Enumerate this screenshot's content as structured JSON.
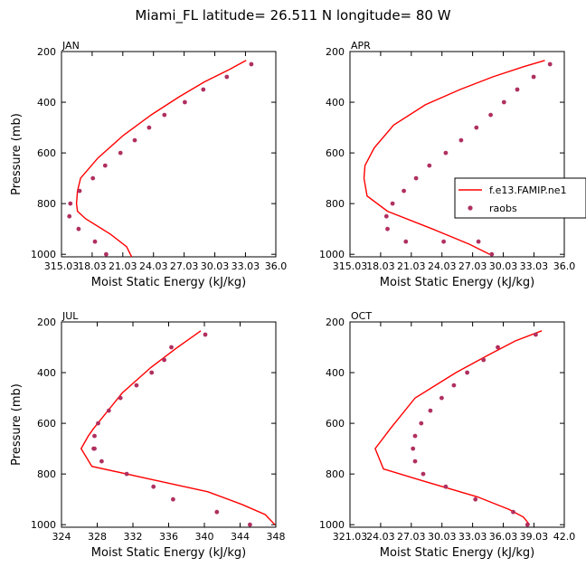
{
  "title": "Miami_FL  latitude= 26.511 N longitude= 80 W",
  "legend": {
    "items": [
      {
        "label": "f.e13.FAMIP.ne1",
        "kind": "line",
        "color": "#ff0000"
      },
      {
        "label": "raobs",
        "kind": "marker",
        "color": "#b03060"
      }
    ]
  },
  "chart_data": [
    {
      "type": "line",
      "panel": "JAN",
      "xlabel": "Moist Static Energy (kJ/kg)",
      "ylabel": "Pressure (mb)",
      "xlim": [
        315.03,
        336.0
      ],
      "ylim": [
        1010,
        200
      ],
      "y_inverted": true,
      "xticks": [
        315.03,
        318.03,
        321.03,
        324.03,
        327.03,
        330.03,
        333.03,
        336.0
      ],
      "xtick_labels": [
        "315.03",
        "18.03",
        "21.03",
        "24.03",
        "27.03",
        "30.03",
        "33.03",
        "36.0"
      ],
      "yticks": [
        200,
        400,
        600,
        800,
        1000
      ],
      "ytick_labels": [
        "200",
        "400",
        "600",
        "800",
        "1000"
      ],
      "series": [
        {
          "name": "f.e13.FAMIP.ne1",
          "style": "line",
          "color": "#ff0000",
          "x": [
            333.1,
            331.5,
            329.0,
            326.5,
            323.8,
            321.1,
            318.6,
            316.9,
            316.6,
            316.5,
            316.6,
            317.4,
            319.8,
            321.4,
            321.9
          ],
          "y": [
            235,
            270,
            320,
            380,
            450,
            530,
            620,
            700,
            750,
            800,
            830,
            860,
            920,
            970,
            1010
          ]
        },
        {
          "name": "raobs",
          "style": "marker",
          "color": "#b03060",
          "x": [
            333.6,
            331.2,
            328.9,
            327.1,
            325.1,
            323.6,
            322.2,
            320.8,
            319.3,
            318.1,
            316.8,
            315.9,
            315.8,
            316.7,
            318.3,
            319.4
          ],
          "y": [
            250,
            300,
            350,
            400,
            450,
            500,
            550,
            600,
            650,
            700,
            750,
            800,
            850,
            900,
            950,
            1000
          ]
        }
      ]
    },
    {
      "type": "line",
      "panel": "APR",
      "xlabel": "Moist Static Energy (kJ/kg)",
      "ylabel": "",
      "xlim": [
        315.03,
        336.0
      ],
      "ylim": [
        1010,
        200
      ],
      "y_inverted": true,
      "xticks": [
        315.03,
        318.03,
        321.03,
        324.03,
        327.03,
        330.03,
        333.03,
        336.0
      ],
      "xtick_labels": [
        "315.03",
        "18.03",
        "21.03",
        "24.03",
        "27.03",
        "30.03",
        "33.03",
        "36.0"
      ],
      "yticks": [
        200,
        400,
        600,
        800,
        1000
      ],
      "ytick_labels": [
        "200",
        "400",
        "600",
        "800",
        "1000"
      ],
      "series": [
        {
          "name": "f.e13.FAMIP.ne1",
          "style": "line",
          "color": "#ff0000",
          "x": [
            334.1,
            332.0,
            329.0,
            325.8,
            322.4,
            319.3,
            317.4,
            316.5,
            316.4,
            316.7,
            318.7,
            323.1,
            326.7,
            328.7
          ],
          "y": [
            235,
            260,
            300,
            350,
            410,
            490,
            580,
            650,
            700,
            770,
            830,
            900,
            960,
            1000
          ]
        },
        {
          "name": "raobs",
          "style": "marker",
          "color": "#b03060",
          "x": [
            334.6,
            333.0,
            331.4,
            330.1,
            328.8,
            327.4,
            325.9,
            324.4,
            322.8,
            321.5,
            320.3,
            319.2,
            318.6,
            318.7,
            320.5,
            324.2,
            327.6,
            328.9
          ],
          "y": [
            250,
            300,
            350,
            400,
            450,
            500,
            550,
            600,
            650,
            700,
            750,
            800,
            850,
            900,
            950,
            950,
            950,
            1000
          ]
        }
      ]
    },
    {
      "type": "line",
      "panel": "JUL",
      "xlabel": "Moist Static Energy (kJ/kg)",
      "ylabel": "Pressure (mb)",
      "xlim": [
        324,
        348
      ],
      "ylim": [
        1010,
        200
      ],
      "y_inverted": true,
      "xticks": [
        324,
        328,
        332,
        336,
        340,
        344,
        348
      ],
      "xtick_labels": [
        "324",
        "328",
        "332",
        "336",
        "340",
        "344",
        "348"
      ],
      "yticks": [
        200,
        400,
        600,
        800,
        1000
      ],
      "ytick_labels": [
        "200",
        "400",
        "600",
        "800",
        "1000"
      ],
      "series": [
        {
          "name": "f.e13.FAMIP.ne1",
          "style": "line",
          "color": "#ff0000",
          "x": [
            339.6,
            337.0,
            334.0,
            330.8,
            327.6,
            327.0,
            326.2,
            327.4,
            333.9,
            340.4,
            344.2,
            346.8,
            347.9
          ],
          "y": [
            235,
            300,
            380,
            480,
            620,
            650,
            700,
            770,
            820,
            870,
            920,
            960,
            1000
          ]
        },
        {
          "name": "raobs",
          "style": "marker",
          "color": "#b03060",
          "x": [
            340.1,
            336.3,
            335.5,
            334.1,
            332.4,
            330.6,
            329.3,
            328.1,
            327.7,
            327.6,
            327.7,
            328.5,
            331.3,
            334.3,
            336.5,
            341.4,
            345.1
          ],
          "y": [
            250,
            300,
            350,
            400,
            450,
            500,
            550,
            600,
            650,
            700,
            700,
            750,
            800,
            850,
            900,
            950,
            1000
          ]
        }
      ]
    },
    {
      "type": "line",
      "panel": "OCT",
      "xlabel": "Moist Static Energy (kJ/kg)",
      "ylabel": "",
      "xlim": [
        321.03,
        342.0
      ],
      "ylim": [
        1010,
        200
      ],
      "y_inverted": true,
      "xticks": [
        321.03,
        324.03,
        327.03,
        330.03,
        333.03,
        336.03,
        339.03,
        342.0
      ],
      "xtick_labels": [
        "321.03",
        "24.03",
        "27.03",
        "30.03",
        "33.03",
        "36.03",
        "39.03",
        "42.0"
      ],
      "yticks": [
        200,
        400,
        600,
        800,
        1000
      ],
      "ytick_labels": [
        "200",
        "400",
        "600",
        "800",
        "1000"
      ],
      "series": [
        {
          "name": "f.e13.FAMIP.ne1",
          "style": "line",
          "color": "#ff0000",
          "x": [
            339.8,
            337.2,
            334.6,
            331.4,
            327.4,
            325.0,
            323.5,
            324.3,
            328.4,
            333.5,
            336.6,
            338.0,
            338.6
          ],
          "y": [
            235,
            275,
            330,
            400,
            500,
            620,
            700,
            780,
            830,
            890,
            940,
            970,
            1000
          ]
        },
        {
          "name": "raobs",
          "style": "marker",
          "color": "#b03060",
          "x": [
            339.2,
            335.5,
            334.1,
            332.5,
            331.2,
            330.0,
            328.9,
            328.0,
            327.4,
            327.2,
            327.4,
            328.2,
            330.4,
            333.3,
            337.0,
            338.4
          ],
          "y": [
            250,
            300,
            350,
            400,
            450,
            500,
            550,
            600,
            650,
            700,
            750,
            800,
            850,
            900,
            950,
            1000
          ]
        }
      ]
    }
  ]
}
